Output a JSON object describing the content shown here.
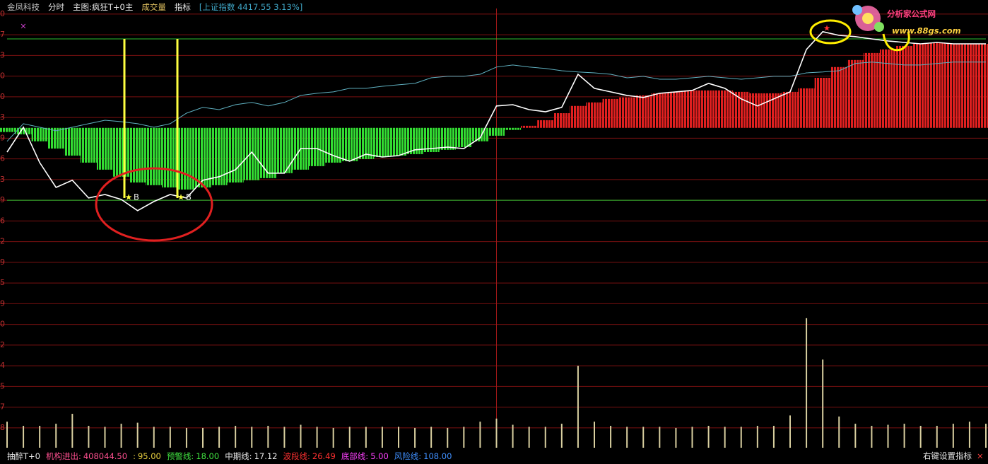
{
  "header": {
    "items": [
      {
        "text": "金凤科技",
        "color": "#c8c8c8"
      },
      {
        "text": "分时",
        "color": "#e8e8e8"
      },
      {
        "text": "主图:疯狂T+0主",
        "color": "#e8e8e8"
      },
      {
        "text": "成交量",
        "color": "#e0c060"
      },
      {
        "text": "指标",
        "color": "#e8e8e8"
      },
      {
        "text": "[上证指数 4417.55 3.13%]",
        "color": "#40a8c8"
      }
    ]
  },
  "logo": {
    "title": "分析家公式网",
    "url": "www.88gs.com"
  },
  "chart": {
    "ylim": [
      -0.96,
      20.27
    ],
    "xlim": [
      0,
      240
    ],
    "yticks": [
      {
        "value": 20,
        "label": "0"
      },
      {
        "value": 19,
        "label": "7"
      },
      {
        "value": 18,
        "label": "3"
      },
      {
        "value": 17,
        "label": "0"
      },
      {
        "value": 16,
        "label": "0"
      },
      {
        "value": 15,
        "label": "3"
      },
      {
        "value": 14,
        "label": "9"
      },
      {
        "value": 13,
        "label": "6"
      },
      {
        "value": 12,
        "label": "3"
      },
      {
        "value": 11,
        "label": "9"
      },
      {
        "value": 10,
        "label": "6"
      },
      {
        "value": 9,
        "label": "2"
      },
      {
        "value": 8,
        "label": "9"
      },
      {
        "value": 7,
        "label": "5"
      },
      {
        "value": 6,
        "label": "9"
      },
      {
        "value": 5,
        "label": "0"
      },
      {
        "value": 4,
        "label": "2"
      },
      {
        "value": 3,
        "label": "4"
      },
      {
        "value": 2,
        "label": "5"
      },
      {
        "value": 1,
        "label": "7"
      },
      {
        "value": 0,
        "label": "8"
      }
    ],
    "xgrid": [
      120
    ],
    "guides": [
      18.8,
      11.0
    ],
    "x": [
      0,
      4,
      8,
      12,
      16,
      20,
      24,
      28,
      32,
      36,
      40,
      44,
      48,
      52,
      56,
      60,
      64,
      68,
      72,
      76,
      80,
      84,
      88,
      92,
      96,
      100,
      104,
      108,
      112,
      116,
      120,
      124,
      128,
      132,
      136,
      140,
      144,
      148,
      152,
      156,
      160,
      164,
      168,
      172,
      176,
      180,
      184,
      188,
      192,
      196,
      200,
      204,
      208,
      212,
      216,
      220,
      224,
      228,
      232,
      236,
      240
    ],
    "histogram": {
      "base": 14.5,
      "below_color": "#33dd33",
      "above_color": "#e02020",
      "values": [
        14.3,
        14.19,
        13.85,
        13.5,
        13.16,
        12.82,
        12.48,
        12.14,
        11.86,
        11.73,
        11.62,
        11.52,
        11.62,
        11.73,
        11.86,
        11.97,
        12.07,
        12.31,
        12.48,
        12.65,
        12.82,
        12.89,
        12.99,
        13.09,
        13.16,
        13.23,
        13.33,
        13.44,
        13.57,
        13.85,
        14.12,
        14.4,
        14.6,
        14.87,
        15.21,
        15.56,
        15.73,
        15.9,
        15.97,
        16.07,
        16.17,
        16.24,
        16.31,
        16.31,
        16.31,
        16.24,
        16.17,
        16.17,
        16.24,
        16.41,
        16.92,
        17.44,
        17.78,
        18.12,
        18.29,
        18.46,
        18.56,
        18.63,
        18.56,
        18.56,
        18.56
      ]
    },
    "series": [
      {
        "color": "#5fb0c0",
        "values": [
          13.85,
          14.7,
          14.53,
          14.36,
          14.53,
          14.7,
          14.87,
          14.8,
          14.7,
          14.53,
          14.7,
          15.21,
          15.49,
          15.38,
          15.62,
          15.73,
          15.56,
          15.73,
          16.07,
          16.17,
          16.24,
          16.41,
          16.41,
          16.51,
          16.58,
          16.65,
          16.92,
          16.99,
          16.99,
          17.09,
          17.44,
          17.54,
          17.44,
          17.37,
          17.26,
          17.2,
          17.16,
          17.09,
          16.92,
          16.99,
          16.85,
          16.85,
          16.92,
          16.99,
          16.92,
          16.85,
          16.92,
          16.99,
          16.99,
          17.16,
          17.2,
          17.26,
          17.61,
          17.68,
          17.61,
          17.54,
          17.54,
          17.61,
          17.68,
          17.68,
          17.68
        ]
      },
      {
        "color": "#ffffff",
        "values": [
          13.33,
          14.53,
          12.82,
          11.62,
          11.97,
          11.11,
          11.28,
          11.04,
          10.5,
          10.94,
          11.28,
          11.11,
          11.97,
          12.14,
          12.48,
          13.33,
          12.31,
          12.31,
          13.5,
          13.5,
          13.16,
          12.89,
          13.23,
          13.09,
          13.16,
          13.44,
          13.5,
          13.57,
          13.5,
          14.02,
          15.56,
          15.62,
          15.38,
          15.28,
          15.49,
          17.09,
          16.41,
          16.24,
          16.07,
          15.97,
          16.17,
          16.24,
          16.31,
          16.65,
          16.41,
          15.9,
          15.56,
          15.9,
          16.24,
          18.29,
          19.15,
          18.97,
          18.91,
          18.8,
          18.7,
          18.63,
          18.56,
          18.63,
          18.56,
          18.56,
          18.56
        ]
      }
    ],
    "volume": {
      "color": "#d8cfa0",
      "values": [
        0.3,
        0.1,
        0.1,
        0.2,
        0.68,
        0.1,
        0.05,
        0.2,
        0.25,
        0.05,
        0.05,
        0,
        0,
        0.05,
        0.1,
        0.05,
        0.1,
        0.05,
        0.15,
        0.05,
        0,
        0.05,
        0.05,
        0.05,
        0.05,
        0,
        0.05,
        0,
        0.05,
        0.3,
        0.45,
        0.15,
        0.05,
        0.05,
        0.2,
        3.0,
        0.3,
        0.1,
        0.05,
        0.05,
        0.05,
        0,
        0.05,
        0.1,
        0.05,
        0.05,
        0.1,
        0.1,
        0.6,
        5.3,
        3.3,
        0.55,
        0.2,
        0.1,
        0.15,
        0.2,
        0.1,
        0.1,
        0.2,
        0.3,
        0.2
      ]
    },
    "signals": [
      "B",
      "B"
    ]
  },
  "footer": {
    "name": "抽醉T+0",
    "indicators": [
      {
        "label": "机构进出:",
        "value": "408044.50",
        "color": "#ff5090"
      },
      {
        "label": ":",
        "value": "95.00",
        "color": "#e8d040"
      },
      {
        "label": "预警线:",
        "value": "18.00",
        "color": "#40e040"
      },
      {
        "label": "中期线:",
        "value": "17.12",
        "color": "#e8e8e8"
      },
      {
        "label": "波段线:",
        "value": "26.49",
        "color": "#ff3030"
      },
      {
        "label": "底部线:",
        "value": "5.00",
        "color": "#ff40ff"
      },
      {
        "label": "风险线:",
        "value": "108.00",
        "color": "#4090ff"
      }
    ],
    "settings": "右键设置指标",
    "close": "×"
  }
}
